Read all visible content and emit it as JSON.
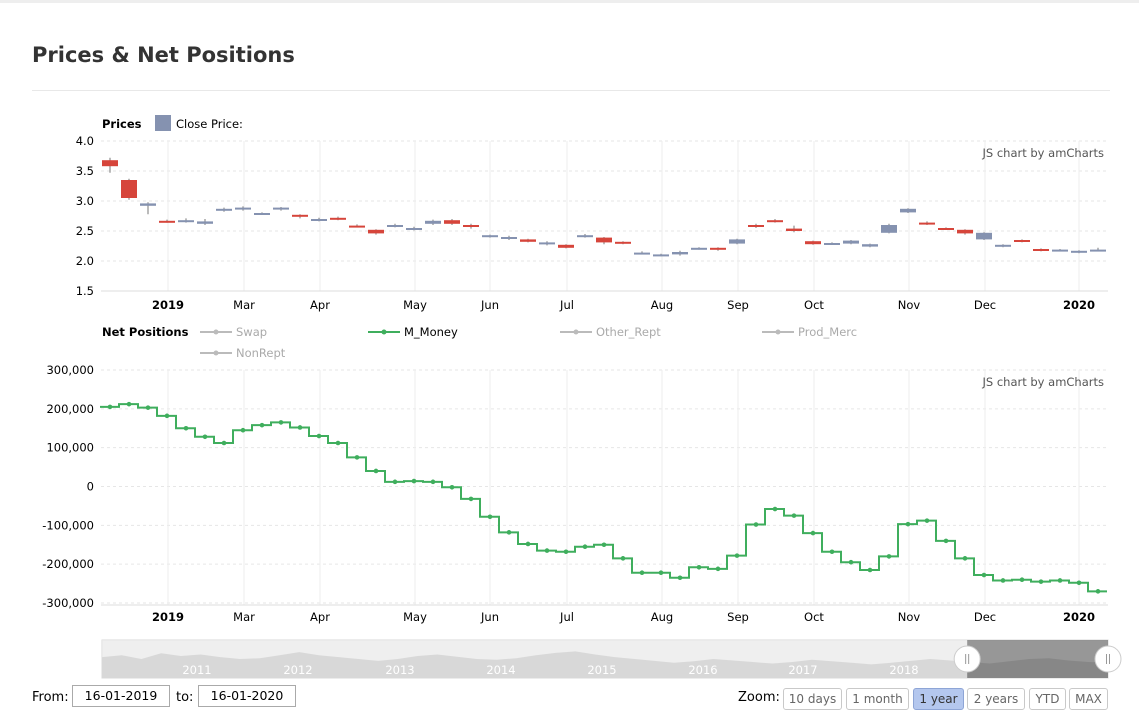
{
  "page": {
    "title": "Prices & Net Positions",
    "watermark": "JS chart by amCharts"
  },
  "chart_data": [
    {
      "type": "candlestick",
      "title": "Prices",
      "legend": [
        {
          "name": "Close Price:",
          "color": "#8592b0"
        }
      ],
      "ylim": [
        1.5,
        4.0
      ],
      "yticks": [
        4.0,
        3.5,
        3.0,
        2.5,
        2.0,
        1.5
      ],
      "ytick_labels": [
        "4.0",
        "3.5",
        "3.0",
        "2.5",
        "2.0",
        "1.5"
      ],
      "x_tick_labels": [
        {
          "label": "2019",
          "bold": true
        },
        {
          "label": "Mar",
          "bold": false
        },
        {
          "label": "Apr",
          "bold": false
        },
        {
          "label": "May",
          "bold": false
        },
        {
          "label": "Jun",
          "bold": false
        },
        {
          "label": "Jul",
          "bold": false
        },
        {
          "label": "Aug",
          "bold": false
        },
        {
          "label": "Sep",
          "bold": false
        },
        {
          "label": "Oct",
          "bold": false
        },
        {
          "label": "Nov",
          "bold": false
        },
        {
          "label": "Dec",
          "bold": false
        },
        {
          "label": "2020",
          "bold": true
        }
      ],
      "up_color": "#8592b0",
      "down_color": "#d6453b",
      "candles": [
        {
          "open": 3.68,
          "close": 3.58,
          "high": 3.72,
          "low": 3.47
        },
        {
          "open": 3.35,
          "close": 3.05,
          "high": 3.37,
          "low": 3.02
        },
        {
          "open": 2.92,
          "close": 2.96,
          "high": 2.98,
          "low": 2.78
        },
        {
          "open": 2.67,
          "close": 2.66,
          "high": 2.69,
          "low": 2.64
        },
        {
          "open": 2.65,
          "close": 2.68,
          "high": 2.71,
          "low": 2.64
        },
        {
          "open": 2.62,
          "close": 2.66,
          "high": 2.7,
          "low": 2.6
        },
        {
          "open": 2.84,
          "close": 2.87,
          "high": 2.89,
          "low": 2.82
        },
        {
          "open": 2.86,
          "close": 2.89,
          "high": 2.91,
          "low": 2.84
        },
        {
          "open": 2.79,
          "close": 2.8,
          "high": 2.81,
          "low": 2.77
        },
        {
          "open": 2.86,
          "close": 2.89,
          "high": 2.9,
          "low": 2.84
        },
        {
          "open": 2.77,
          "close": 2.75,
          "high": 2.78,
          "low": 2.71
        },
        {
          "open": 2.68,
          "close": 2.7,
          "high": 2.72,
          "low": 2.66
        },
        {
          "open": 2.72,
          "close": 2.7,
          "high": 2.74,
          "low": 2.68
        },
        {
          "open": 2.59,
          "close": 2.57,
          "high": 2.61,
          "low": 2.56
        },
        {
          "open": 2.52,
          "close": 2.46,
          "high": 2.53,
          "low": 2.44
        },
        {
          "open": 2.58,
          "close": 2.6,
          "high": 2.62,
          "low": 2.56
        },
        {
          "open": 2.52,
          "close": 2.55,
          "high": 2.57,
          "low": 2.51
        },
        {
          "open": 2.62,
          "close": 2.67,
          "high": 2.69,
          "low": 2.6
        },
        {
          "open": 2.68,
          "close": 2.62,
          "high": 2.7,
          "low": 2.6
        },
        {
          "open": 2.6,
          "close": 2.59,
          "high": 2.62,
          "low": 2.54
        },
        {
          "open": 2.41,
          "close": 2.43,
          "high": 2.44,
          "low": 2.39
        },
        {
          "open": 2.37,
          "close": 2.4,
          "high": 2.42,
          "low": 2.35
        },
        {
          "open": 2.36,
          "close": 2.32,
          "high": 2.37,
          "low": 2.31
        },
        {
          "open": 2.3,
          "close": 2.31,
          "high": 2.33,
          "low": 2.26
        },
        {
          "open": 2.27,
          "close": 2.22,
          "high": 2.28,
          "low": 2.21
        },
        {
          "open": 2.4,
          "close": 2.43,
          "high": 2.45,
          "low": 2.39
        },
        {
          "open": 2.39,
          "close": 2.31,
          "high": 2.4,
          "low": 2.28
        },
        {
          "open": 2.32,
          "close": 2.29,
          "high": 2.33,
          "low": 2.28
        },
        {
          "open": 2.12,
          "close": 2.14,
          "high": 2.16,
          "low": 2.11
        },
        {
          "open": 2.09,
          "close": 2.11,
          "high": 2.12,
          "low": 2.08
        },
        {
          "open": 2.11,
          "close": 2.15,
          "high": 2.17,
          "low": 2.09
        },
        {
          "open": 2.2,
          "close": 2.22,
          "high": 2.23,
          "low": 2.19
        },
        {
          "open": 2.22,
          "close": 2.19,
          "high": 2.23,
          "low": 2.17
        },
        {
          "open": 2.29,
          "close": 2.36,
          "high": 2.37,
          "low": 2.28
        },
        {
          "open": 2.6,
          "close": 2.57,
          "high": 2.62,
          "low": 2.55
        },
        {
          "open": 2.68,
          "close": 2.66,
          "high": 2.7,
          "low": 2.64
        },
        {
          "open": 2.54,
          "close": 2.5,
          "high": 2.59,
          "low": 2.48
        },
        {
          "open": 2.33,
          "close": 2.28,
          "high": 2.34,
          "low": 2.27
        },
        {
          "open": 2.29,
          "close": 2.3,
          "high": 2.31,
          "low": 2.28
        },
        {
          "open": 2.29,
          "close": 2.34,
          "high": 2.35,
          "low": 2.28
        },
        {
          "open": 2.24,
          "close": 2.28,
          "high": 2.29,
          "low": 2.23
        },
        {
          "open": 2.47,
          "close": 2.6,
          "high": 2.62,
          "low": 2.46
        },
        {
          "open": 2.81,
          "close": 2.87,
          "high": 2.88,
          "low": 2.8
        },
        {
          "open": 2.64,
          "close": 2.62,
          "high": 2.66,
          "low": 2.6
        },
        {
          "open": 2.55,
          "close": 2.53,
          "high": 2.56,
          "low": 2.52
        },
        {
          "open": 2.52,
          "close": 2.46,
          "high": 2.53,
          "low": 2.44
        },
        {
          "open": 2.36,
          "close": 2.47,
          "high": 2.48,
          "low": 2.35
        },
        {
          "open": 2.24,
          "close": 2.27,
          "high": 2.28,
          "low": 2.23
        },
        {
          "open": 2.35,
          "close": 2.32,
          "high": 2.36,
          "low": 2.31
        },
        {
          "open": 2.2,
          "close": 2.17,
          "high": 2.21,
          "low": 2.16
        },
        {
          "open": 2.18,
          "close": 2.19,
          "high": 2.2,
          "low": 2.17
        },
        {
          "open": 2.15,
          "close": 2.17,
          "high": 2.18,
          "low": 2.13
        },
        {
          "open": 2.18,
          "close": 2.19,
          "high": 2.22,
          "low": 2.17
        }
      ]
    },
    {
      "type": "step-line",
      "title": "Net Positions",
      "ylim": [
        -320000,
        300000
      ],
      "yticks": [
        300000,
        200000,
        100000,
        0,
        -100000,
        -200000,
        -300000
      ],
      "ytick_labels": [
        "300,000",
        "200,000",
        "100,000",
        "0",
        "-100,000",
        "-200,000",
        "-300,000"
      ],
      "x_tick_labels": [
        {
          "label": "2019",
          "bold": true
        },
        {
          "label": "Mar",
          "bold": false
        },
        {
          "label": "Apr",
          "bold": false
        },
        {
          "label": "May",
          "bold": false
        },
        {
          "label": "Jun",
          "bold": false
        },
        {
          "label": "Jul",
          "bold": false
        },
        {
          "label": "Aug",
          "bold": false
        },
        {
          "label": "Sep",
          "bold": false
        },
        {
          "label": "Oct",
          "bold": false
        },
        {
          "label": "Nov",
          "bold": false
        },
        {
          "label": "Dec",
          "bold": false
        },
        {
          "label": "2020",
          "bold": true
        }
      ],
      "series": [
        {
          "name": "Swap",
          "color": "#bbbbbb",
          "visible": false
        },
        {
          "name": "M_Money",
          "color": "#3fae5d",
          "visible": true,
          "values": [
            205000,
            212000,
            203000,
            182000,
            150000,
            128000,
            112000,
            145000,
            158000,
            165000,
            152000,
            130000,
            112000,
            75000,
            40000,
            12000,
            14000,
            12000,
            -2000,
            -32000,
            -78000,
            -118000,
            -148000,
            -165000,
            -168000,
            -155000,
            -150000,
            -185000,
            -222000,
            -222000,
            -235000,
            -208000,
            -212000,
            -178000,
            -98000,
            -58000,
            -75000,
            -120000,
            -168000,
            -195000,
            -215000,
            -180000,
            -97000,
            -88000,
            -140000,
            -185000,
            -228000,
            -242000,
            -240000,
            -245000,
            -242000,
            -248000,
            -270000
          ]
        },
        {
          "name": "Other_Rept",
          "color": "#bbbbbb",
          "visible": false
        },
        {
          "name": "Prod_Merc",
          "color": "#bbbbbb",
          "visible": false
        },
        {
          "name": "NonRept",
          "color": "#bbbbbb",
          "visible": false
        }
      ]
    }
  ],
  "scrollbar": {
    "year_labels": [
      "2011",
      "2012",
      "2013",
      "2014",
      "2015",
      "2016",
      "2017",
      "2018"
    ],
    "grip_icon": "drag-handle-icon",
    "selection_fraction": [
      0.86,
      1.0
    ]
  },
  "controls": {
    "from_label": "From:",
    "from_value": "16-01-2019",
    "to_label": "to:",
    "to_value": "16-01-2020",
    "zoom_label": "Zoom:",
    "zoom_buttons": [
      {
        "label": "10 days",
        "active": false
      },
      {
        "label": "1 month",
        "active": false
      },
      {
        "label": "1 year",
        "active": true
      },
      {
        "label": "2 years",
        "active": false
      },
      {
        "label": "YTD",
        "active": false
      },
      {
        "label": "MAX",
        "active": false
      }
    ]
  }
}
